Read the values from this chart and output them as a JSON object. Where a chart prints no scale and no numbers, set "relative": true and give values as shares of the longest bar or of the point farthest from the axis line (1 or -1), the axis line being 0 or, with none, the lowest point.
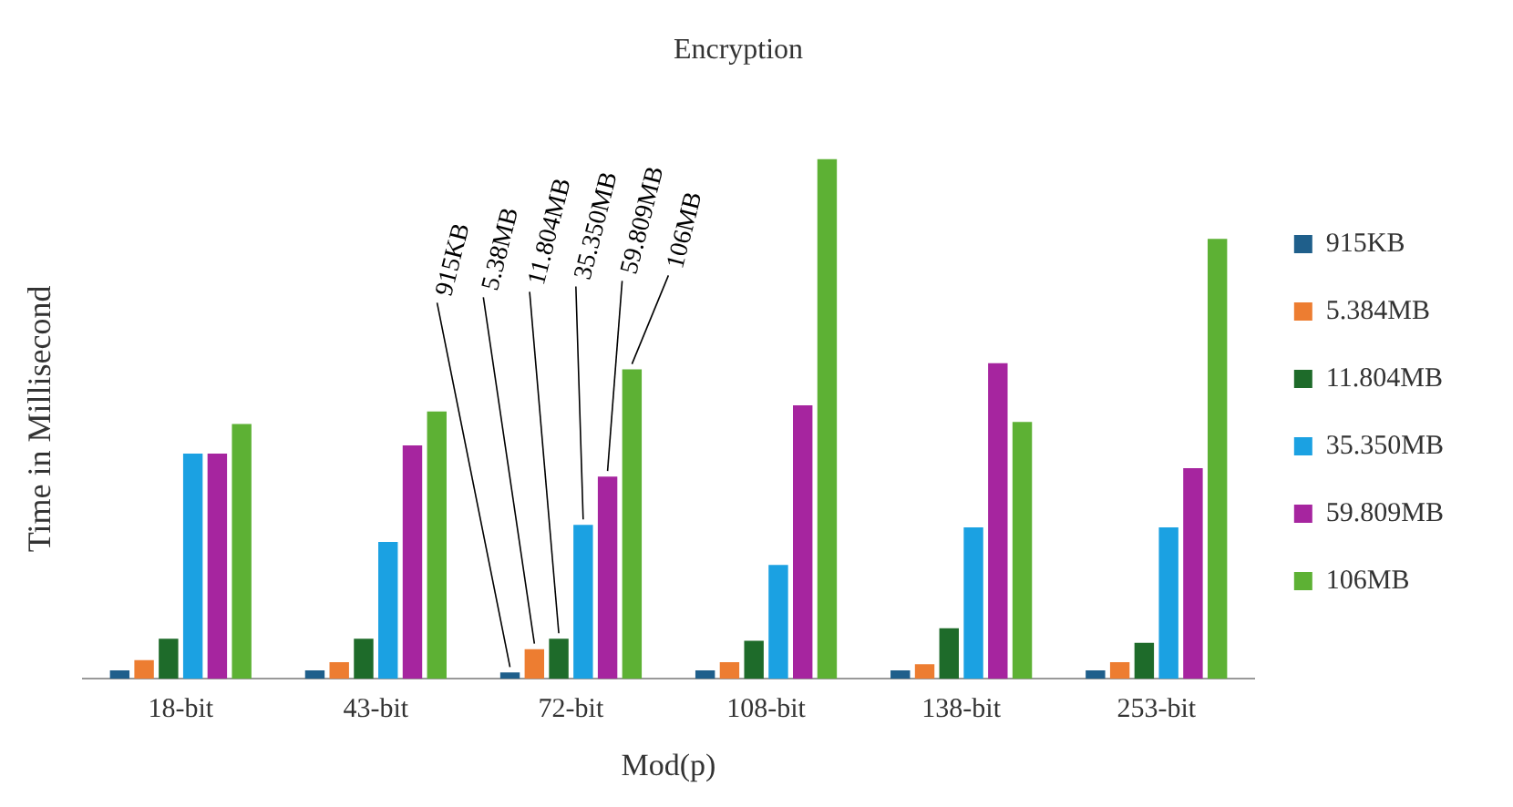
{
  "chart_data": {
    "type": "bar",
    "title": "Encryption",
    "xlabel": "Mod(p)",
    "ylabel": "Time in Millisecond",
    "relative": true,
    "legend": "right",
    "grid": false,
    "categories": [
      "18-bit",
      "43-bit",
      "72-bit",
      "108-bit",
      "138-bit",
      "253-bit"
    ],
    "series": [
      {
        "name": "915KB",
        "color": "#1f5f8b",
        "values": [
          0.016,
          0.016,
          0.012,
          0.016,
          0.016,
          0.016
        ]
      },
      {
        "name": "5.384MB",
        "color": "#ed7d31",
        "values": [
          0.036,
          0.032,
          0.057,
          0.032,
          0.028,
          0.032
        ]
      },
      {
        "name": "11.804MB",
        "color": "#1e6b2a",
        "values": [
          0.077,
          0.077,
          0.077,
          0.073,
          0.097,
          0.069
        ]
      },
      {
        "name": "35.350MB",
        "color": "#1ba1e2",
        "values": [
          0.433,
          0.263,
          0.296,
          0.219,
          0.291,
          0.291
        ]
      },
      {
        "name": "59.809MB",
        "color": "#a6259f",
        "values": [
          0.433,
          0.449,
          0.389,
          0.526,
          0.607,
          0.405
        ]
      },
      {
        "name": "106MB",
        "color": "#5db134",
        "values": [
          0.49,
          0.514,
          0.595,
          1,
          0.494,
          0.846
        ]
      }
    ],
    "annotations": [
      "915KB",
      "5.38MB",
      "11.804MB",
      "35.350MB",
      "59.809MB",
      "106MB"
    ]
  }
}
